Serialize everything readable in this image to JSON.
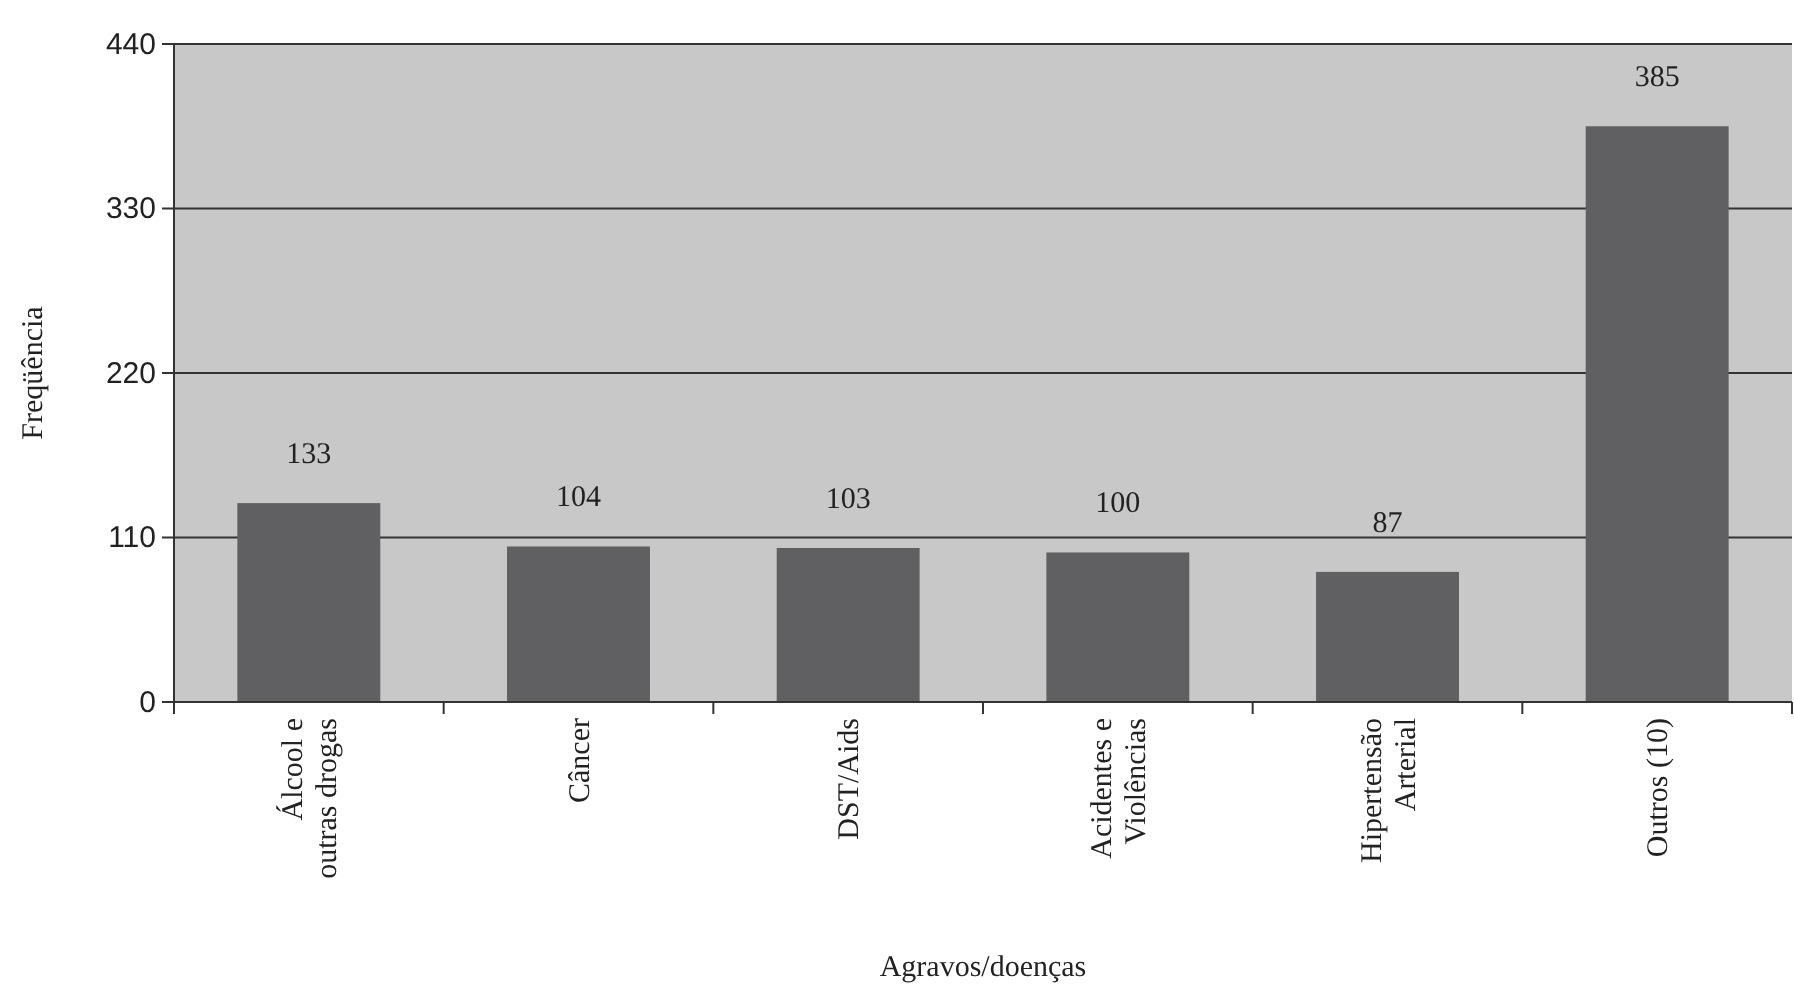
{
  "chart_data": {
    "type": "bar",
    "xlabel": "Agravos/doenças",
    "ylabel": "Freqüência",
    "categories": [
      "Álcool e\noutras drogas",
      "Câncer",
      "DST/Aids",
      "Acidentes e\nViolências",
      "Hipertensão\nArterial",
      "Outros (10)"
    ],
    "values": [
      133,
      104,
      103,
      100,
      87,
      385
    ],
    "color": "#606062",
    "ylim": [
      0,
      440
    ],
    "yticks": [
      0,
      110,
      220,
      330,
      440
    ],
    "grid": "y",
    "data_labels": true
  }
}
